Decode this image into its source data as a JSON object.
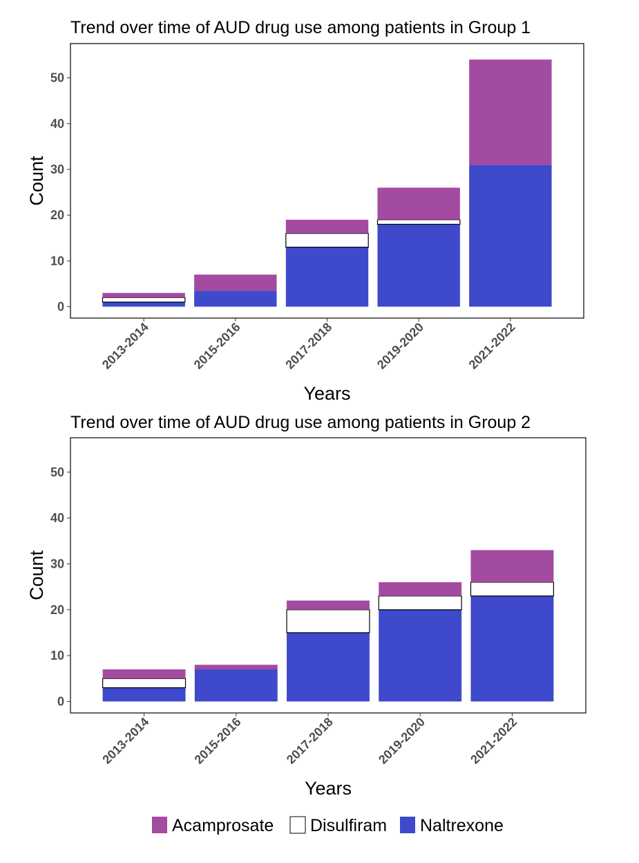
{
  "chart_data": [
    {
      "type": "bar",
      "stacked": true,
      "title": "Trend over time of AUD drug use among patients in Group 1",
      "xlabel": "Years",
      "ylabel": "Count",
      "ylim": [
        -2.5,
        57.5
      ],
      "yticks": [
        0,
        10,
        20,
        30,
        40,
        50
      ],
      "categories": [
        "2013-2014",
        "2015-2016",
        "2017-2018",
        "2019-2020",
        "2021-2022"
      ],
      "series": [
        {
          "name": "Naltrexone",
          "values": [
            1,
            3.5,
            13,
            18,
            31
          ]
        },
        {
          "name": "Disulfiram",
          "values": [
            1,
            0,
            3,
            1,
            0
          ]
        },
        {
          "name": "Acamprosate",
          "values": [
            1,
            3.5,
            3,
            7,
            23
          ]
        }
      ]
    },
    {
      "type": "bar",
      "stacked": true,
      "title": "Trend over time of AUD drug use among patients in Group 2",
      "xlabel": "Years",
      "ylabel": "Count",
      "ylim": [
        -2.5,
        57.5
      ],
      "yticks": [
        0,
        10,
        20,
        30,
        40,
        50
      ],
      "categories": [
        "2013-2014",
        "2015-2016",
        "2017-2018",
        "2019-2020",
        "2021-2022"
      ],
      "series": [
        {
          "name": "Naltrexone",
          "values": [
            3,
            7,
            15,
            20,
            23
          ]
        },
        {
          "name": "Disulfiram",
          "values": [
            2,
            0,
            5,
            3,
            3
          ]
        },
        {
          "name": "Acamprosate",
          "values": [
            2,
            1,
            2,
            3,
            7
          ]
        }
      ]
    }
  ],
  "legend": {
    "position": "bottom",
    "items": [
      {
        "name": "Acamprosate",
        "color": "#a24ba0"
      },
      {
        "name": "Disulfiram",
        "color": "#ffffff"
      },
      {
        "name": "Naltrexone",
        "color": "#3f49cb"
      }
    ]
  },
  "colors": {
    "Naltrexone": "#3f49cb",
    "Disulfiram": "#ffffff",
    "Acamprosate": "#a24ba0"
  }
}
